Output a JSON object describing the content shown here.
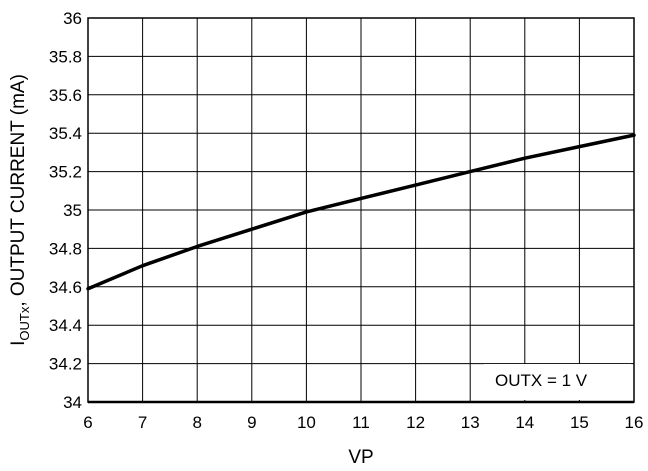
{
  "chart_data": {
    "type": "line",
    "title": "",
    "xlabel": "VP",
    "ylabel": {
      "main": "I",
      "subscript": "OUTx",
      "rest": ", OUTPUT CURRENT (mA)"
    },
    "xlim": [
      6,
      16
    ],
    "ylim": [
      34,
      36
    ],
    "x_ticks": [
      "6",
      "7",
      "8",
      "9",
      "10",
      "11",
      "12",
      "13",
      "14",
      "15",
      "16"
    ],
    "y_ticks": [
      "34",
      "34.2",
      "34.4",
      "34.6",
      "34.8",
      "35",
      "35.2",
      "35.4",
      "35.6",
      "35.8",
      "36"
    ],
    "grid": true,
    "annotation": "OUTX = 1 V",
    "annotation_position": "bottom-right",
    "series": [
      {
        "color": "#000000",
        "x": [
          6,
          7,
          8,
          9,
          10,
          11,
          12,
          13,
          14,
          15,
          16
        ],
        "y": [
          34.59,
          34.71,
          34.81,
          34.9,
          34.99,
          35.06,
          35.13,
          35.2,
          35.27,
          35.33,
          35.39
        ]
      }
    ]
  }
}
